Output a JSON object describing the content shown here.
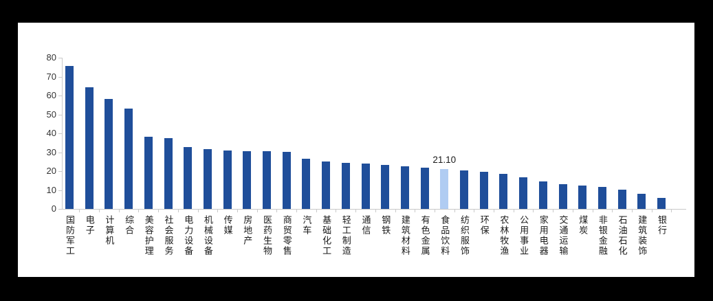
{
  "frame": {
    "background_color": "#000000",
    "canvas_background_color": "#ffffff"
  },
  "chart_data": {
    "type": "bar",
    "title": "",
    "xlabel": "",
    "ylabel": "",
    "categories": [
      "国防军工",
      "电子",
      "计算机",
      "综合",
      "美容护理",
      "社会服务",
      "电力设备",
      "机械设备",
      "传媒",
      "房地产",
      "医药生物",
      "商贸零售",
      "汽车",
      "基础化工",
      "轻工制造",
      "通信",
      "钢铁",
      "建筑材料",
      "有色金属",
      "食品饮料",
      "纺织服饰",
      "环保",
      "农林牧渔",
      "公用事业",
      "家用电器",
      "交通运输",
      "煤炭",
      "非银金融",
      "石油石化",
      "建筑装饰",
      "银行"
    ],
    "values": [
      75.8,
      64.3,
      58.1,
      53.0,
      38.2,
      37.3,
      32.9,
      31.5,
      30.9,
      30.5,
      30.4,
      30.2,
      26.4,
      25.0,
      24.4,
      23.9,
      23.2,
      22.7,
      21.9,
      21.1,
      20.2,
      19.5,
      18.4,
      16.6,
      14.4,
      13.2,
      12.5,
      11.8,
      10.1,
      7.9,
      5.8
    ],
    "highlighted_index": 19,
    "highlighted_category": "食品饮料",
    "data_label": "21.10",
    "data_label_shown_only_for_highlight": true,
    "ylim": [
      0,
      80
    ],
    "yticks": [
      0,
      10,
      20,
      30,
      40,
      50,
      60,
      70,
      80
    ],
    "grid": false,
    "legend": null,
    "colors": {
      "bar": "#1f4e9a",
      "highlighted_bar": "#b0ccf2",
      "axis": "#c9c9c9",
      "tick_label": "#333333",
      "data_label": "#1a1a1a"
    }
  }
}
